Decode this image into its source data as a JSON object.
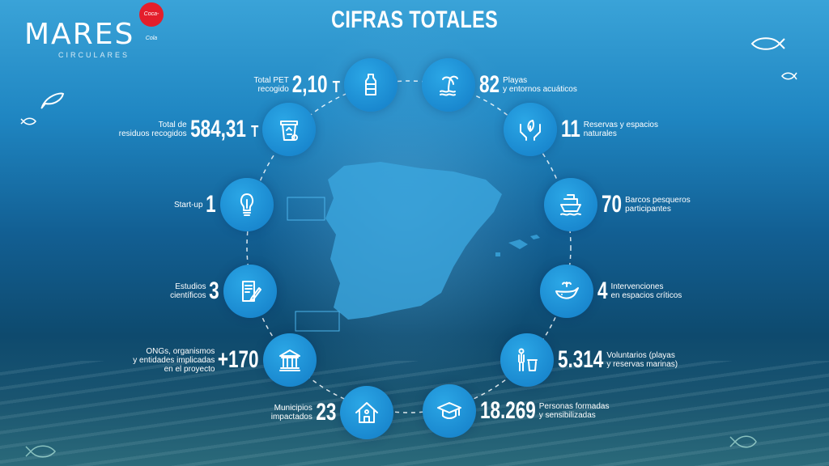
{
  "brand": {
    "name": "MARES",
    "subtitle": "CIRCULARES",
    "sponsor": "Coca-Cola"
  },
  "title": "CIFRAS TOTALES",
  "stats": [
    {
      "id": "pet",
      "side": "left",
      "value": "2,10",
      "unit": "T",
      "label": [
        "Total PET",
        "recogido"
      ],
      "icon": "bottle-icon"
    },
    {
      "id": "playas",
      "side": "right",
      "value": "82",
      "unit": "",
      "label": [
        "Playas",
        "y entornos acuáticos"
      ],
      "icon": "island-palm-icon"
    },
    {
      "id": "residuos",
      "side": "left",
      "value": "584,31",
      "unit": "T",
      "label": [
        "Total de",
        "residuos recogidos"
      ],
      "icon": "recycle-bin-icon"
    },
    {
      "id": "reservas",
      "side": "right",
      "value": "11",
      "unit": "",
      "label": [
        "Reservas y espacios",
        "naturales"
      ],
      "icon": "hands-leaf-icon"
    },
    {
      "id": "startup",
      "side": "left",
      "value": "1",
      "unit": "",
      "label": [
        "Start-up"
      ],
      "icon": "lightbulb-icon"
    },
    {
      "id": "barcos",
      "side": "right",
      "value": "70",
      "unit": "",
      "label": [
        "Barcos pesqueros",
        "participantes"
      ],
      "icon": "ship-icon"
    },
    {
      "id": "estudios",
      "side": "left",
      "value": "3",
      "unit": "",
      "label": [
        "Estudios",
        "científicos"
      ],
      "icon": "document-pen-icon"
    },
    {
      "id": "intervenciones",
      "side": "right",
      "value": "4",
      "unit": "",
      "label": [
        "Intervenciones",
        "en espacios críticos"
      ],
      "icon": "whale-icon"
    },
    {
      "id": "ongs",
      "side": "left",
      "value": "+170",
      "unit": "",
      "label": [
        "ONGs, organismos",
        "y entidades implicadas",
        "en el proyecto"
      ],
      "icon": "institution-icon"
    },
    {
      "id": "voluntarios",
      "side": "right",
      "value": "5.314",
      "unit": "",
      "label": [
        "Voluntarios (playas",
        "y reservas marinas)"
      ],
      "icon": "volunteer-trash-icon"
    },
    {
      "id": "municipios",
      "side": "left",
      "value": "23",
      "unit": "",
      "label": [
        "Municipios",
        "impactados"
      ],
      "icon": "house-icon"
    },
    {
      "id": "personas",
      "side": "right",
      "value": "18.269",
      "unit": "",
      "label": [
        "Personas formadas",
        "y sensibilizadas"
      ],
      "icon": "graduation-cap-icon"
    }
  ]
}
